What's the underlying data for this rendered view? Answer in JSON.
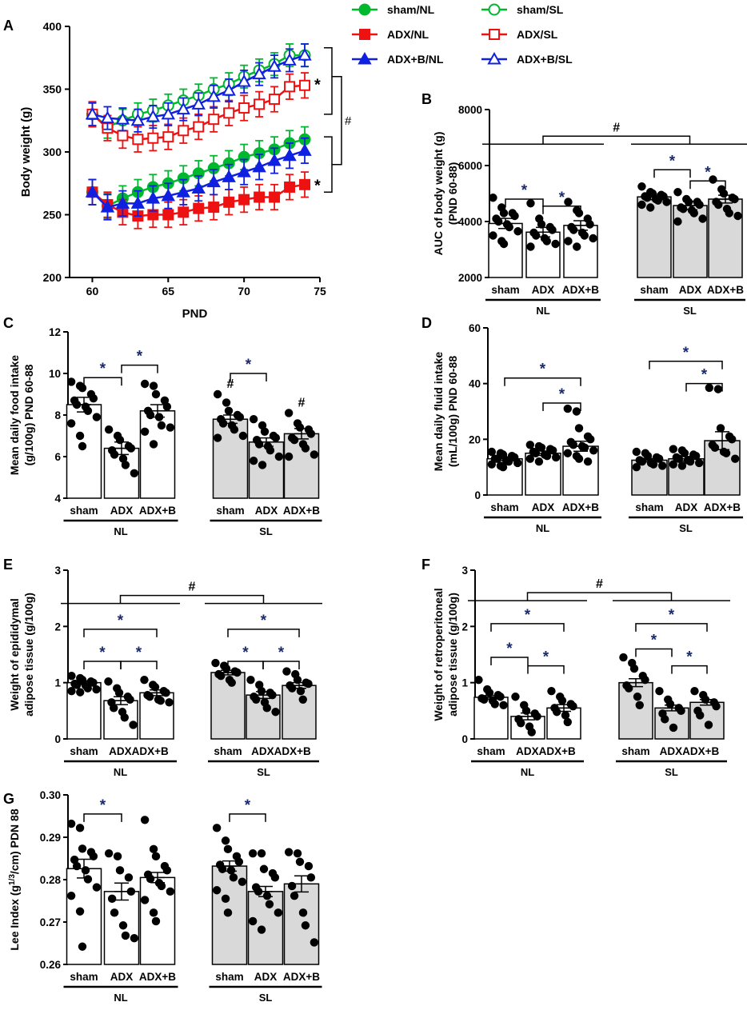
{
  "figure_style": {
    "colors": {
      "sham_nl": "#00b82e",
      "adx_nl": "#ee1111",
      "adxb_nl": "#1020e0",
      "sham_sl": "#00b82e",
      "adx_sl": "#ee1111",
      "adxb_sl": "#1020e0",
      "nl_bar_fill": "#ffffff",
      "sl_bar_fill": "#d9d9d9",
      "star_color": "#1a2a6c",
      "axis": "#000000"
    }
  },
  "chart_data": [
    {
      "id": "A",
      "panel_label": "A",
      "type": "line",
      "xlabel": "PND",
      "ylabel": "Body weight (g)",
      "xlim": [
        58.5,
        75
      ],
      "ylim": [
        200,
        400
      ],
      "xticks": [
        60,
        65,
        70,
        75
      ],
      "yticks": [
        200,
        250,
        300,
        350,
        400
      ],
      "x": [
        60,
        61,
        62,
        63,
        64,
        65,
        66,
        67,
        68,
        69,
        70,
        71,
        72,
        73,
        74
      ],
      "legend": [
        {
          "name": "sham/NL",
          "marker": "circle-filled",
          "color_key": "sham_nl"
        },
        {
          "name": "sham/SL",
          "marker": "circle-open",
          "color_key": "sham_sl"
        },
        {
          "name": "ADX/NL",
          "marker": "square-filled",
          "color_key": "adx_nl"
        },
        {
          "name": "ADX/SL",
          "marker": "square-open",
          "color_key": "adx_sl"
        },
        {
          "name": "ADX+B/NL",
          "marker": "triangle-filled",
          "color_key": "adxb_nl"
        },
        {
          "name": "ADX+B/SL",
          "marker": "triangle-open",
          "color_key": "adxb_sl"
        }
      ],
      "series": [
        {
          "name": "sham/NL",
          "marker": "circle-filled",
          "color_key": "sham_nl",
          "values": [
            268,
            257,
            263,
            268,
            272,
            275,
            279,
            283,
            287,
            291,
            296,
            299,
            302,
            307,
            310
          ],
          "err": 10
        },
        {
          "name": "ADX/NL",
          "marker": "square-filled",
          "color_key": "adx_nl",
          "values": [
            268,
            258,
            252,
            249,
            250,
            250,
            252,
            255,
            256,
            260,
            262,
            264,
            264,
            272,
            274
          ],
          "err": 10
        },
        {
          "name": "ADX+B/NL",
          "marker": "triangle-filled",
          "color_key": "adxb_nl",
          "values": [
            268,
            256,
            259,
            259,
            263,
            265,
            268,
            271,
            276,
            280,
            284,
            288,
            293,
            297,
            301
          ],
          "err": 10
        },
        {
          "name": "sham/SL",
          "marker": "circle-open",
          "color_key": "sham_sl",
          "values": [
            330,
            320,
            325,
            330,
            333,
            337,
            341,
            345,
            350,
            354,
            360,
            365,
            370,
            377,
            377
          ],
          "err": 9
        },
        {
          "name": "ADX/SL",
          "marker": "square-open",
          "color_key": "adx_sl",
          "values": [
            330,
            319,
            313,
            310,
            311,
            312,
            317,
            320,
            326,
            331,
            335,
            338,
            342,
            352,
            353
          ],
          "err": 10
        },
        {
          "name": "ADX+B/SL",
          "marker": "triangle-open",
          "color_key": "adxb_sl",
          "values": [
            330,
            327,
            326,
            325,
            328,
            330,
            334,
            338,
            344,
            349,
            356,
            362,
            368,
            373,
            377
          ],
          "err": 9
        }
      ],
      "annotations": [
        {
          "text": "*",
          "y": 355
        },
        {
          "text": "*",
          "y": 275
        },
        {
          "text": "#"
        }
      ]
    },
    {
      "id": "B",
      "panel_label": "B",
      "type": "bar",
      "ylabel_lines": [
        "AUC of body weight (g)",
        "(PND 60-88)"
      ],
      "ylim": [
        2000,
        8000
      ],
      "yticks": [
        2000,
        4000,
        6000,
        8000
      ],
      "categories": [
        "sham",
        "ADX",
        "ADX+B",
        "sham",
        "ADX",
        "ADX+B"
      ],
      "groups": [
        "NL",
        "SL"
      ],
      "values": [
        3930,
        3620,
        3860,
        4880,
        4570,
        4800
      ],
      "errors": [
        180,
        170,
        170,
        100,
        150,
        140
      ],
      "points": [
        [
          4850,
          4500,
          4300,
          4300,
          4200,
          4100,
          4000,
          3900,
          3800,
          3650,
          3500,
          3300,
          3200
        ],
        [
          4650,
          4100,
          3900,
          3800,
          3700,
          3600,
          3500,
          3400,
          3300,
          3200,
          3100
        ],
        [
          4700,
          4400,
          4300,
          4100,
          3900,
          3800,
          3700,
          3600,
          3500,
          3400,
          3300,
          3100
        ]
      ],
      "points_sl": [
        [
          5250,
          5050,
          5000,
          4950,
          4900,
          4900,
          4850,
          4800,
          4750,
          4700,
          4600,
          4500
        ],
        [
          5050,
          4800,
          4700,
          4700,
          4600,
          4500,
          4450,
          4400,
          4300,
          4100,
          4000
        ],
        [
          5500,
          5150,
          5000,
          4850,
          4800,
          4700,
          4600,
          4450,
          4300,
          4200
        ]
      ],
      "brackets": [
        {
          "from": 0,
          "to": 1,
          "y": 4800,
          "text": "*"
        },
        {
          "from": 1,
          "to": 2,
          "y": 4550,
          "text": "*"
        },
        {
          "from": 3,
          "to": 4,
          "y": 5850,
          "text": "*"
        },
        {
          "from": 4,
          "to": 5,
          "y": 5450,
          "text": "*"
        }
      ],
      "group_bracket": {
        "y": 7050,
        "text": "#"
      }
    },
    {
      "id": "C",
      "panel_label": "C",
      "type": "bar",
      "ylabel_lines": [
        "Mean daily food intake",
        "(g/100g) PND 60-88"
      ],
      "ylim": [
        4,
        12
      ],
      "yticks": [
        4,
        6,
        8,
        10,
        12
      ],
      "categories": [
        "sham",
        "ADX",
        "ADX+B",
        "sham",
        "ADX",
        "ADX+B"
      ],
      "groups": [
        "NL",
        "SL"
      ],
      "values": [
        8.5,
        6.4,
        8.2,
        7.8,
        6.7,
        7.1
      ],
      "errors": [
        0.35,
        0.3,
        0.3,
        0.2,
        0.2,
        0.25
      ],
      "points": [
        [
          9.6,
          9.4,
          9.3,
          9.0,
          8.8,
          8.7,
          8.5,
          8.4,
          8.2,
          7.9,
          7.6,
          7.0,
          6.5
        ],
        [
          7.3,
          7.0,
          6.8,
          6.5,
          6.4,
          6.3,
          6.1,
          5.9,
          5.6,
          5.2
        ],
        [
          9.5,
          9.4,
          9.0,
          8.7,
          8.4,
          8.2,
          8.0,
          7.9,
          7.5,
          7.4,
          7.2,
          6.6
        ]
      ],
      "points_sl": [
        [
          9.0,
          8.6,
          8.2,
          8.0,
          7.9,
          7.8,
          7.6,
          7.5,
          7.3,
          7.0,
          6.9
        ],
        [
          7.8,
          7.5,
          7.2,
          7.0,
          6.9,
          6.8,
          6.6,
          6.5,
          6.3,
          6.0,
          5.8,
          5.6
        ],
        [
          8.1,
          7.6,
          7.4,
          7.3,
          7.1,
          6.9,
          6.8,
          6.6,
          6.4,
          6.1,
          6.0
        ]
      ],
      "brackets": [
        {
          "from": 0,
          "to": 1,
          "y": 9.8,
          "text": "*"
        },
        {
          "from": 1,
          "to": 2,
          "y": 10.4,
          "text": "*"
        },
        {
          "from": 3,
          "to": 4,
          "y": 10.0,
          "text": "*"
        }
      ],
      "marks": [
        {
          "bar": 3,
          "y": 9.3,
          "text": "#"
        },
        {
          "bar": 5,
          "y": 8.4,
          "text": "#"
        }
      ]
    },
    {
      "id": "D",
      "panel_label": "D",
      "type": "bar",
      "ylabel_lines": [
        "Mean daily fluid intake",
        "(mL/100g) PND 60-88"
      ],
      "ylim": [
        0,
        60
      ],
      "yticks": [
        0,
        20,
        40,
        60
      ],
      "categories": [
        "sham",
        "ADX",
        "ADX+B",
        "sham",
        "ADX",
        "ADX+B"
      ],
      "groups": [
        "NL",
        "SL"
      ],
      "values": [
        13,
        15,
        17.5,
        12.5,
        13,
        19.5
      ],
      "errors": [
        0.6,
        0.8,
        1.8,
        0.6,
        0.8,
        3.2
      ],
      "points": [
        [
          15.5,
          15,
          14.5,
          14,
          13.5,
          13,
          13,
          12.5,
          12,
          11.5,
          11,
          10.5,
          10
        ],
        [
          18,
          17.5,
          17,
          16.5,
          16,
          15.5,
          15,
          14.5,
          14,
          13.5,
          13,
          12
        ],
        [
          31,
          30,
          24,
          21,
          20,
          19,
          18,
          17.5,
          17,
          16,
          15,
          14,
          13,
          12
        ]
      ],
      "points_sl": [
        [
          15.5,
          15,
          14,
          13.5,
          13,
          12.5,
          12,
          11.5,
          11,
          10.5,
          10
        ],
        [
          16.5,
          16,
          15,
          14.5,
          14,
          13.5,
          13,
          12.5,
          12,
          11.5,
          11,
          10.5
        ],
        [
          38.5,
          38,
          24,
          21,
          20,
          18,
          17,
          15.5,
          15,
          13
        ]
      ],
      "brackets": [
        {
          "from": 0,
          "to": 2,
          "y": 42,
          "text": "*"
        },
        {
          "from": 1,
          "to": 2,
          "y": 33,
          "text": "*"
        },
        {
          "from": 3,
          "to": 5,
          "y": 48,
          "text": "*"
        },
        {
          "from": 4,
          "to": 5,
          "y": 40,
          "text": "*"
        }
      ]
    },
    {
      "id": "E",
      "panel_label": "E",
      "type": "bar",
      "ylabel_lines": [
        "Weight of epididymal",
        "adipose tissue (g/100g)"
      ],
      "ylim": [
        0,
        3
      ],
      "yticks": [
        0,
        1,
        2,
        3
      ],
      "categories": [
        "sham",
        "ADX",
        "ADX+B",
        "sham",
        "ADX",
        "ADX+B"
      ],
      "tick_override": [
        "sham",
        "ADXADX+B",
        "",
        "sham",
        "ADXADX+B",
        ""
      ],
      "groups": [
        "NL",
        "SL"
      ],
      "values": [
        1.0,
        0.68,
        0.82,
        1.18,
        0.78,
        0.95
      ],
      "errors": [
        0.03,
        0.07,
        0.05,
        0.04,
        0.06,
        0.05
      ],
      "points": [
        [
          1.12,
          1.08,
          1.05,
          1.02,
          1.0,
          0.98,
          0.96,
          0.95,
          0.9,
          0.88,
          0.85,
          0.83
        ],
        [
          1.02,
          0.9,
          0.82,
          0.75,
          0.7,
          0.65,
          0.55,
          0.48,
          0.38,
          0.25
        ],
        [
          1.05,
          0.96,
          0.92,
          0.85,
          0.82,
          0.78,
          0.75,
          0.7,
          0.68,
          0.65
        ]
      ],
      "points_sl": [
        [
          1.35,
          1.3,
          1.25,
          1.2,
          1.18,
          1.15,
          1.12,
          1.05,
          1.0
        ],
        [
          1.05,
          0.96,
          0.85,
          0.82,
          0.78,
          0.75,
          0.7,
          0.65,
          0.55,
          0.48
        ],
        [
          1.2,
          1.15,
          1.05,
          1.0,
          0.98,
          0.95,
          0.9,
          0.85,
          0.7
        ]
      ],
      "brackets": [
        {
          "from": 0,
          "to": 1,
          "y": 1.38,
          "text": "*"
        },
        {
          "from": 0,
          "to": 2,
          "y": 1.95,
          "text": "*"
        },
        {
          "from": 1,
          "to": 2,
          "y": 1.38,
          "text": "*"
        },
        {
          "from": 3,
          "to": 4,
          "y": 1.38,
          "text": "*"
        },
        {
          "from": 3,
          "to": 5,
          "y": 1.95,
          "text": "*"
        },
        {
          "from": 4,
          "to": 5,
          "y": 1.38,
          "text": "*"
        }
      ],
      "group_bracket": {
        "y": 2.55,
        "text": "#"
      }
    },
    {
      "id": "F",
      "panel_label": "F",
      "type": "bar",
      "ylabel_lines": [
        "Weight of retroperitoneal",
        "adipose tissue (g/100g)"
      ],
      "ylim": [
        0,
        3
      ],
      "yticks": [
        0,
        1,
        2,
        3
      ],
      "categories": [
        "sham",
        "ADX",
        "ADX+B",
        "sham",
        "ADX",
        "ADX+B"
      ],
      "tick_override": [
        "sham",
        "ADXADX+B",
        "",
        "sham",
        "ADXADX+B",
        ""
      ],
      "groups": [
        "NL",
        "SL"
      ],
      "values": [
        0.74,
        0.4,
        0.55,
        1.0,
        0.55,
        0.65
      ],
      "errors": [
        0.03,
        0.06,
        0.06,
        0.07,
        0.05,
        0.05
      ],
      "points": [
        [
          1.05,
          0.88,
          0.82,
          0.78,
          0.75,
          0.72,
          0.7,
          0.68,
          0.62,
          0.6
        ],
        [
          0.75,
          0.6,
          0.5,
          0.45,
          0.4,
          0.35,
          0.28,
          0.22,
          0.12
        ],
        [
          0.85,
          0.75,
          0.68,
          0.62,
          0.58,
          0.55,
          0.48,
          0.42,
          0.3
        ]
      ],
      "points_sl": [
        [
          1.45,
          1.35,
          1.25,
          1.12,
          1.05,
          0.95,
          0.9,
          0.75,
          0.6
        ],
        [
          0.85,
          0.7,
          0.62,
          0.55,
          0.5,
          0.45,
          0.35,
          0.2
        ],
        [
          0.85,
          0.78,
          0.7,
          0.65,
          0.58,
          0.5,
          0.42,
          0.25
        ]
      ],
      "brackets": [
        {
          "from": 0,
          "to": 1,
          "y": 1.45,
          "text": "*"
        },
        {
          "from": 0,
          "to": 2,
          "y": 2.05,
          "text": "*"
        },
        {
          "from": 1,
          "to": 2,
          "y": 1.3,
          "text": "*"
        },
        {
          "from": 3,
          "to": 4,
          "y": 1.6,
          "text": "*"
        },
        {
          "from": 3,
          "to": 5,
          "y": 2.05,
          "text": "*"
        },
        {
          "from": 4,
          "to": 5,
          "y": 1.3,
          "text": "*"
        }
      ],
      "group_bracket": {
        "y": 2.6,
        "text": "#"
      }
    },
    {
      "id": "G",
      "panel_label": "G",
      "type": "bar",
      "ylabel_html": true,
      "ylabel_parts": [
        "Lee Index (g",
        "1/3",
        "/cm) PDN 88"
      ],
      "ylim": [
        0.26,
        0.3
      ],
      "yticks": [
        0.26,
        0.27,
        0.28,
        0.29,
        0.3
      ],
      "ytick_labels": [
        "0.26",
        "0.27",
        "0.28",
        "0.29",
        "0.30"
      ],
      "categories": [
        "sham",
        "ADX",
        "ADX+B",
        "sham",
        "ADX",
        "ADX+B"
      ],
      "groups": [
        "NL",
        "SL"
      ],
      "values": [
        0.2826,
        0.2772,
        0.2805,
        0.2832,
        0.2772,
        0.279
      ],
      "errors": [
        0.0022,
        0.002,
        0.0012,
        0.0012,
        0.0012,
        0.0019
      ],
      "points": [
        [
          0.2932,
          0.2922,
          0.2873,
          0.2865,
          0.2855,
          0.2847,
          0.2832,
          0.2822,
          0.2801,
          0.2782,
          0.2762,
          0.2725,
          0.2642
        ],
        [
          0.2862,
          0.2855,
          0.2822,
          0.2805,
          0.2772,
          0.2755,
          0.2722,
          0.2692,
          0.2668,
          0.2662
        ],
        [
          0.2941,
          0.2872,
          0.2855,
          0.2832,
          0.2822,
          0.2812,
          0.2802,
          0.2792,
          0.2785,
          0.2772,
          0.2752,
          0.2722,
          0.2702
        ]
      ],
      "points_sl": [
        [
          0.2922,
          0.2892,
          0.2872,
          0.2855,
          0.2842,
          0.2835,
          0.2825,
          0.2822,
          0.2805,
          0.2795,
          0.2775,
          0.2755,
          0.2722
        ],
        [
          0.2862,
          0.2862,
          0.2825,
          0.2815,
          0.2805,
          0.2782,
          0.2772,
          0.2762,
          0.2742,
          0.2722,
          0.2702,
          0.2682
        ],
        [
          0.2865,
          0.2862,
          0.2842,
          0.2832,
          0.2805,
          0.2785,
          0.2762,
          0.2722,
          0.2692,
          0.2652
        ]
      ],
      "brackets": [
        {
          "from": 0,
          "to": 1,
          "y": 0.2955,
          "text": "*"
        },
        {
          "from": 3,
          "to": 4,
          "y": 0.2955,
          "text": "*"
        }
      ]
    }
  ]
}
